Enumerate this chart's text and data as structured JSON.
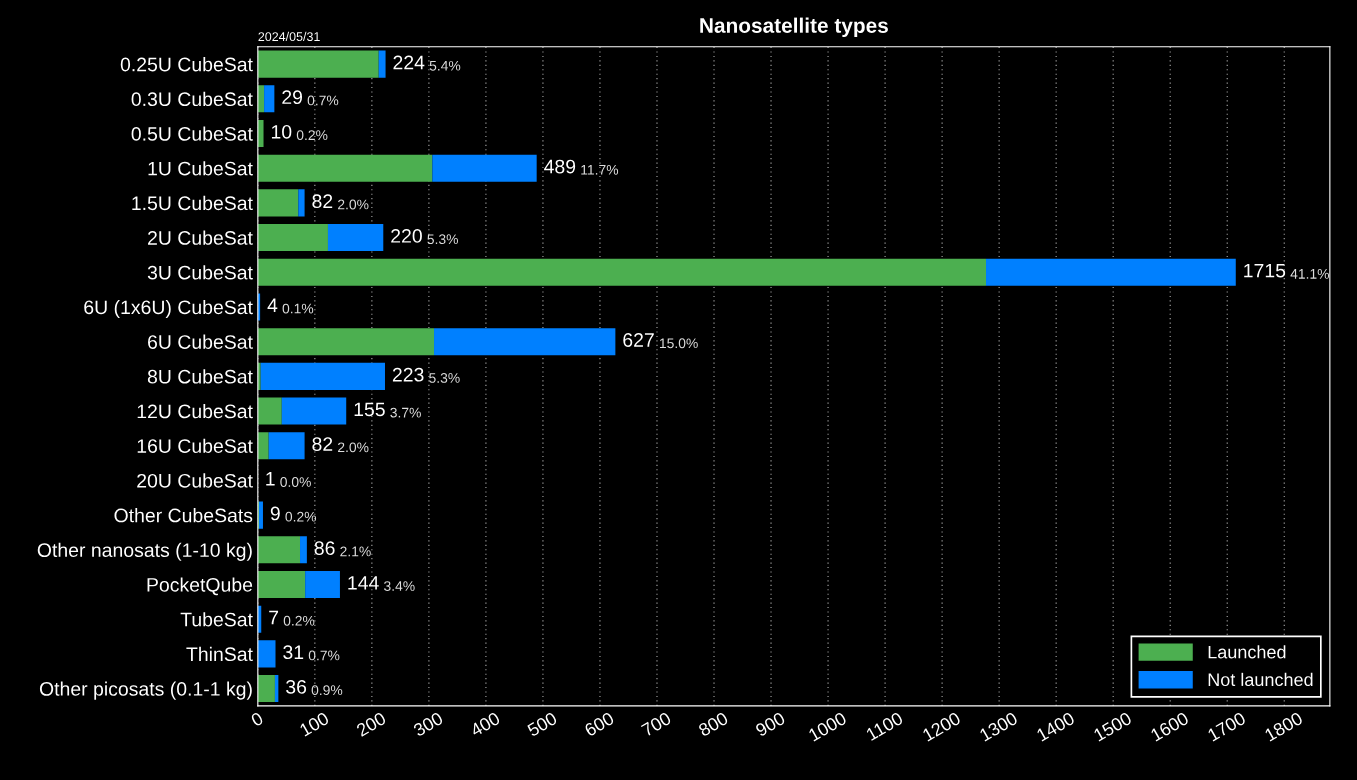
{
  "chart_data": {
    "type": "bar",
    "orientation": "horizontal",
    "stacked": true,
    "title": "Nanosatellite types",
    "categories": [
      "0.25U CubeSat",
      "0.3U CubeSat",
      "0.5U CubeSat",
      "1U CubeSat",
      "1.5U CubeSat",
      "2U CubeSat",
      "3U CubeSat",
      "6U (1x6U) CubeSat",
      "6U CubeSat",
      "8U CubeSat",
      "12U CubeSat",
      "16U CubeSat",
      "20U CubeSat",
      "Other CubeSats",
      "Other nanosats (1-10 kg)",
      "PocketQube",
      "TubeSat",
      "ThinSat",
      "Other picosats (0.1-1 kg)"
    ],
    "series": [
      {
        "name": "Launched",
        "color": "#4caf50",
        "values": [
          212,
          11,
          10,
          306,
          71,
          123,
          1277,
          0,
          309,
          5,
          42,
          19,
          0,
          2,
          74,
          83,
          null,
          0,
          30
        ]
      },
      {
        "name": "Not launched",
        "color": "#0080ff",
        "values": [
          12,
          18,
          0,
          183,
          11,
          97,
          438,
          4,
          318,
          218,
          113,
          63,
          null,
          7,
          12,
          61,
          6,
          31,
          6
        ]
      }
    ],
    "totals": [
      "224 5.4%",
      "29 0.7%",
      "10 0.2%",
      "489 11.7%",
      "82 2.0%",
      "220 5.3%",
      "1715 41.1%",
      "4 0.1%",
      "627 15.0%",
      "223 5.3%",
      "155 3.7%",
      "82 2.0%",
      "1 0.0%",
      "9 0.2%",
      "86 2.1%",
      "144 3.4%",
      "7 0.2%",
      "31 0.7%",
      "36 0.9%"
    ],
    "xlim": [
      0,
      1880
    ],
    "xticks": [
      0,
      100,
      200,
      300,
      400,
      500,
      600,
      700,
      800,
      900,
      1000,
      1100,
      1200,
      1300,
      1400,
      1500,
      1600,
      1700,
      1800
    ],
    "grid": "x",
    "legend": "bottom right",
    "annotations": [
      "2024/05/31"
    ]
  }
}
